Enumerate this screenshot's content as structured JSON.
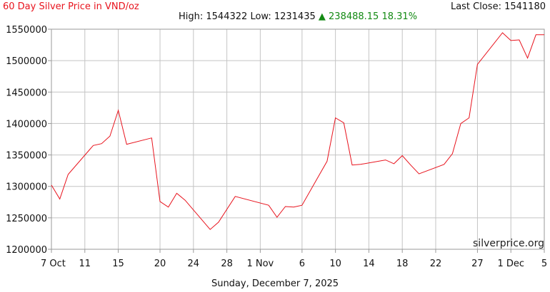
{
  "header": {
    "title": "60 Day Silver Price in VND/oz",
    "last_close_label": "Last Close: 1541180",
    "high_label": "High: 1544322",
    "low_label": "Low: 1231435",
    "change_arrow": "▲",
    "change_value": "238488.15",
    "change_pct": "18.31%"
  },
  "footer": {
    "date": "Sunday, December 7, 2025"
  },
  "watermark": "silverprice.org",
  "chart_data": {
    "type": "line",
    "title": "60 Day Silver Price in VND/oz",
    "xlabel": "",
    "ylabel": "",
    "grid": true,
    "ylim": [
      1200000,
      1550000
    ],
    "y_ticks": [
      1200000,
      1250000,
      1300000,
      1350000,
      1400000,
      1450000,
      1500000,
      1550000
    ],
    "y_tick_labels": [
      "1200000",
      "1250000",
      "1300000",
      "1350000",
      "1400000",
      "1450000",
      "1500000",
      "1550000"
    ],
    "xlim": [
      "2025-10-07",
      "2025-12-05"
    ],
    "x_ticks": [
      "2025-10-07",
      "2025-10-11",
      "2025-10-15",
      "2025-10-20",
      "2025-10-24",
      "2025-10-28",
      "2025-11-01",
      "2025-11-06",
      "2025-11-10",
      "2025-11-14",
      "2025-11-18",
      "2025-11-22",
      "2025-11-27",
      "2025-12-01",
      "2025-12-05"
    ],
    "x_tick_labels": [
      "7 Oct",
      "11",
      "15",
      "20",
      "24",
      "28",
      "1 Nov",
      "6",
      "10",
      "14",
      "18",
      "22",
      "27",
      "1 Dec",
      "5"
    ],
    "line_color": "#e8131d",
    "series": [
      {
        "x": [
          "2025-10-07",
          "2025-10-08",
          "2025-10-09",
          "2025-10-12",
          "2025-10-13",
          "2025-10-14",
          "2025-10-15",
          "2025-10-16",
          "2025-10-19",
          "2025-10-20",
          "2025-10-21",
          "2025-10-22",
          "2025-10-23",
          "2025-10-26",
          "2025-10-27",
          "2025-10-29",
          "2025-11-02",
          "2025-11-03",
          "2025-11-04",
          "2025-11-05",
          "2025-11-06",
          "2025-11-09",
          "2025-11-10",
          "2025-11-11",
          "2025-11-12",
          "2025-11-13",
          "2025-11-16",
          "2025-11-17",
          "2025-11-18",
          "2025-11-19",
          "2025-11-20",
          "2025-11-23",
          "2025-11-24",
          "2025-11-25",
          "2025-11-26",
          "2025-11-27",
          "2025-11-30",
          "2025-12-01",
          "2025-12-02",
          "2025-12-03",
          "2025-12-04",
          "2025-12-05"
        ],
        "y": [
          1302000,
          1280000,
          1319000,
          1365000,
          1368000,
          1380000,
          1421000,
          1367000,
          1377000,
          1276000,
          1267000,
          1289000,
          1278000,
          1231435,
          1243000,
          1284000,
          1270000,
          1251000,
          1268000,
          1267000,
          1270000,
          1340000,
          1409000,
          1401000,
          1334000,
          1335000,
          1342000,
          1336000,
          1349000,
          1334000,
          1320000,
          1335000,
          1352000,
          1400000,
          1409000,
          1494000,
          1544322,
          1532000,
          1533000,
          1504000,
          1541180,
          1541180
        ]
      }
    ]
  }
}
